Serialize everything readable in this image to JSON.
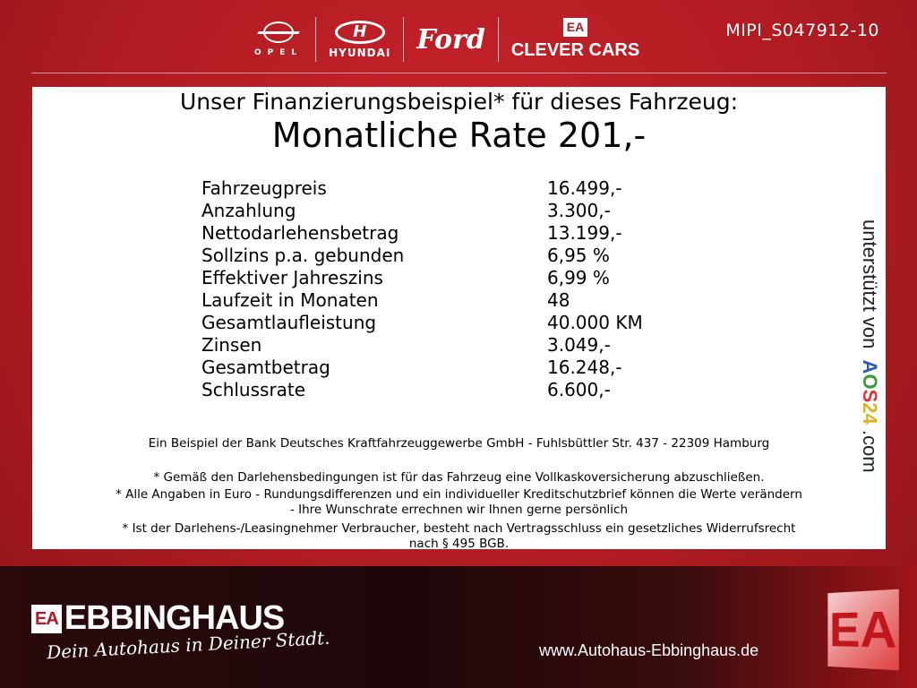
{
  "header": {
    "brands": {
      "opel": "OPEL",
      "hyundai": "HYUNDAI",
      "ford": "Ford",
      "clever_ea": "EA",
      "clever": "CLEVER CARS"
    },
    "code": "MIPI_S047912-10"
  },
  "offer": {
    "title": "Unser Finanzierungsbeispiel* für dieses Fahrzeug:",
    "rate": "Monatliche Rate 201,-",
    "rows": [
      {
        "label": "Fahrzeugpreis",
        "value": "16.499,-"
      },
      {
        "label": "Anzahlung",
        "value": "3.300,-"
      },
      {
        "label": "Nettodarlehensbetrag",
        "value": "13.199,-"
      },
      {
        "label": "Sollzins p.a. gebunden",
        "value": "6,95 %"
      },
      {
        "label": "Effektiver Jahreszins",
        "value": "6,99 %"
      },
      {
        "label": "Laufzeit in Monaten",
        "value": "48"
      },
      {
        "label": "Gesamtlaufleistung",
        "value": "40.000 KM"
      },
      {
        "label": "Zinsen",
        "value": "3.049,-"
      },
      {
        "label": "Gesamtbetrag",
        "value": "16.248,-"
      },
      {
        "label": "Schlussrate",
        "value": "6.600,-"
      }
    ],
    "bank": "Ein Beispiel der Bank Deutsches Kraftfahrzeuggewerbe GmbH - Fuhlsbüttler Str. 437 - 22309 Hamburg",
    "note1": "* Gemäß den Darlehensbedingungen ist für das Fahrzeug eine Vollkaskoversicherung abzuschließen.",
    "note2a": "* Alle Angaben in Euro - Rundungsdifferenzen und ein individueller Kreditschutzbrief können die Werte verändern",
    "note2b": "- Ihre Wunschrate errechnen wir Ihnen gerne persönlich",
    "note3a": "* Ist der Darlehens-/Leasingnehmer Verbraucher, besteht nach Vertragsschluss ein gesetzliches Widerrufsrecht",
    "note3b": "nach § 495 BGB.",
    "supported": {
      "prefix": "unterstützt von",
      "a": "A",
      "o": "O",
      "s": "S",
      "n": "24",
      ".com": ".com"
    }
  },
  "footer": {
    "ea": "EA",
    "name": "EBBINGHAUS",
    "slogan": "Dein Autohaus in Deiner Stadt.",
    "url": "www.Autohaus-Ebbinghaus.de",
    "big_logo": "EA"
  },
  "colors": {
    "brand_red": "#b01c22",
    "footer_dark": "#1e0709"
  }
}
